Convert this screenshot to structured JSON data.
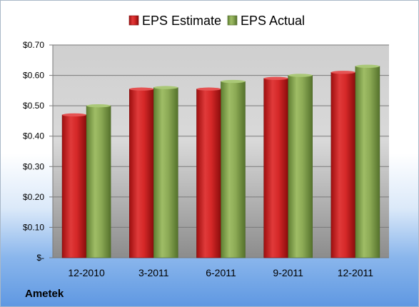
{
  "company": "Ametek",
  "chart_data": {
    "type": "bar",
    "categories": [
      "12-2010",
      "3-2011",
      "6-2011",
      "9-2011",
      "12-2011"
    ],
    "series": [
      {
        "name": "EPS Estimate",
        "values": [
          0.47,
          0.555,
          0.555,
          0.59,
          0.61
        ],
        "color": "#cc1f1f"
      },
      {
        "name": "EPS Actual",
        "values": [
          0.5,
          0.56,
          0.58,
          0.6,
          0.63
        ],
        "color": "#7fa04a"
      }
    ],
    "ylim": [
      0,
      0.7
    ],
    "yticks": [
      0,
      0.1,
      0.2,
      0.3,
      0.4,
      0.5,
      0.6,
      0.7
    ],
    "ytick_labels": [
      "$-",
      "$0.10",
      "$0.20",
      "$0.30",
      "$0.40",
      "$0.50",
      "$0.60",
      "$0.70"
    ],
    "grid": true,
    "legend": "top-center"
  }
}
